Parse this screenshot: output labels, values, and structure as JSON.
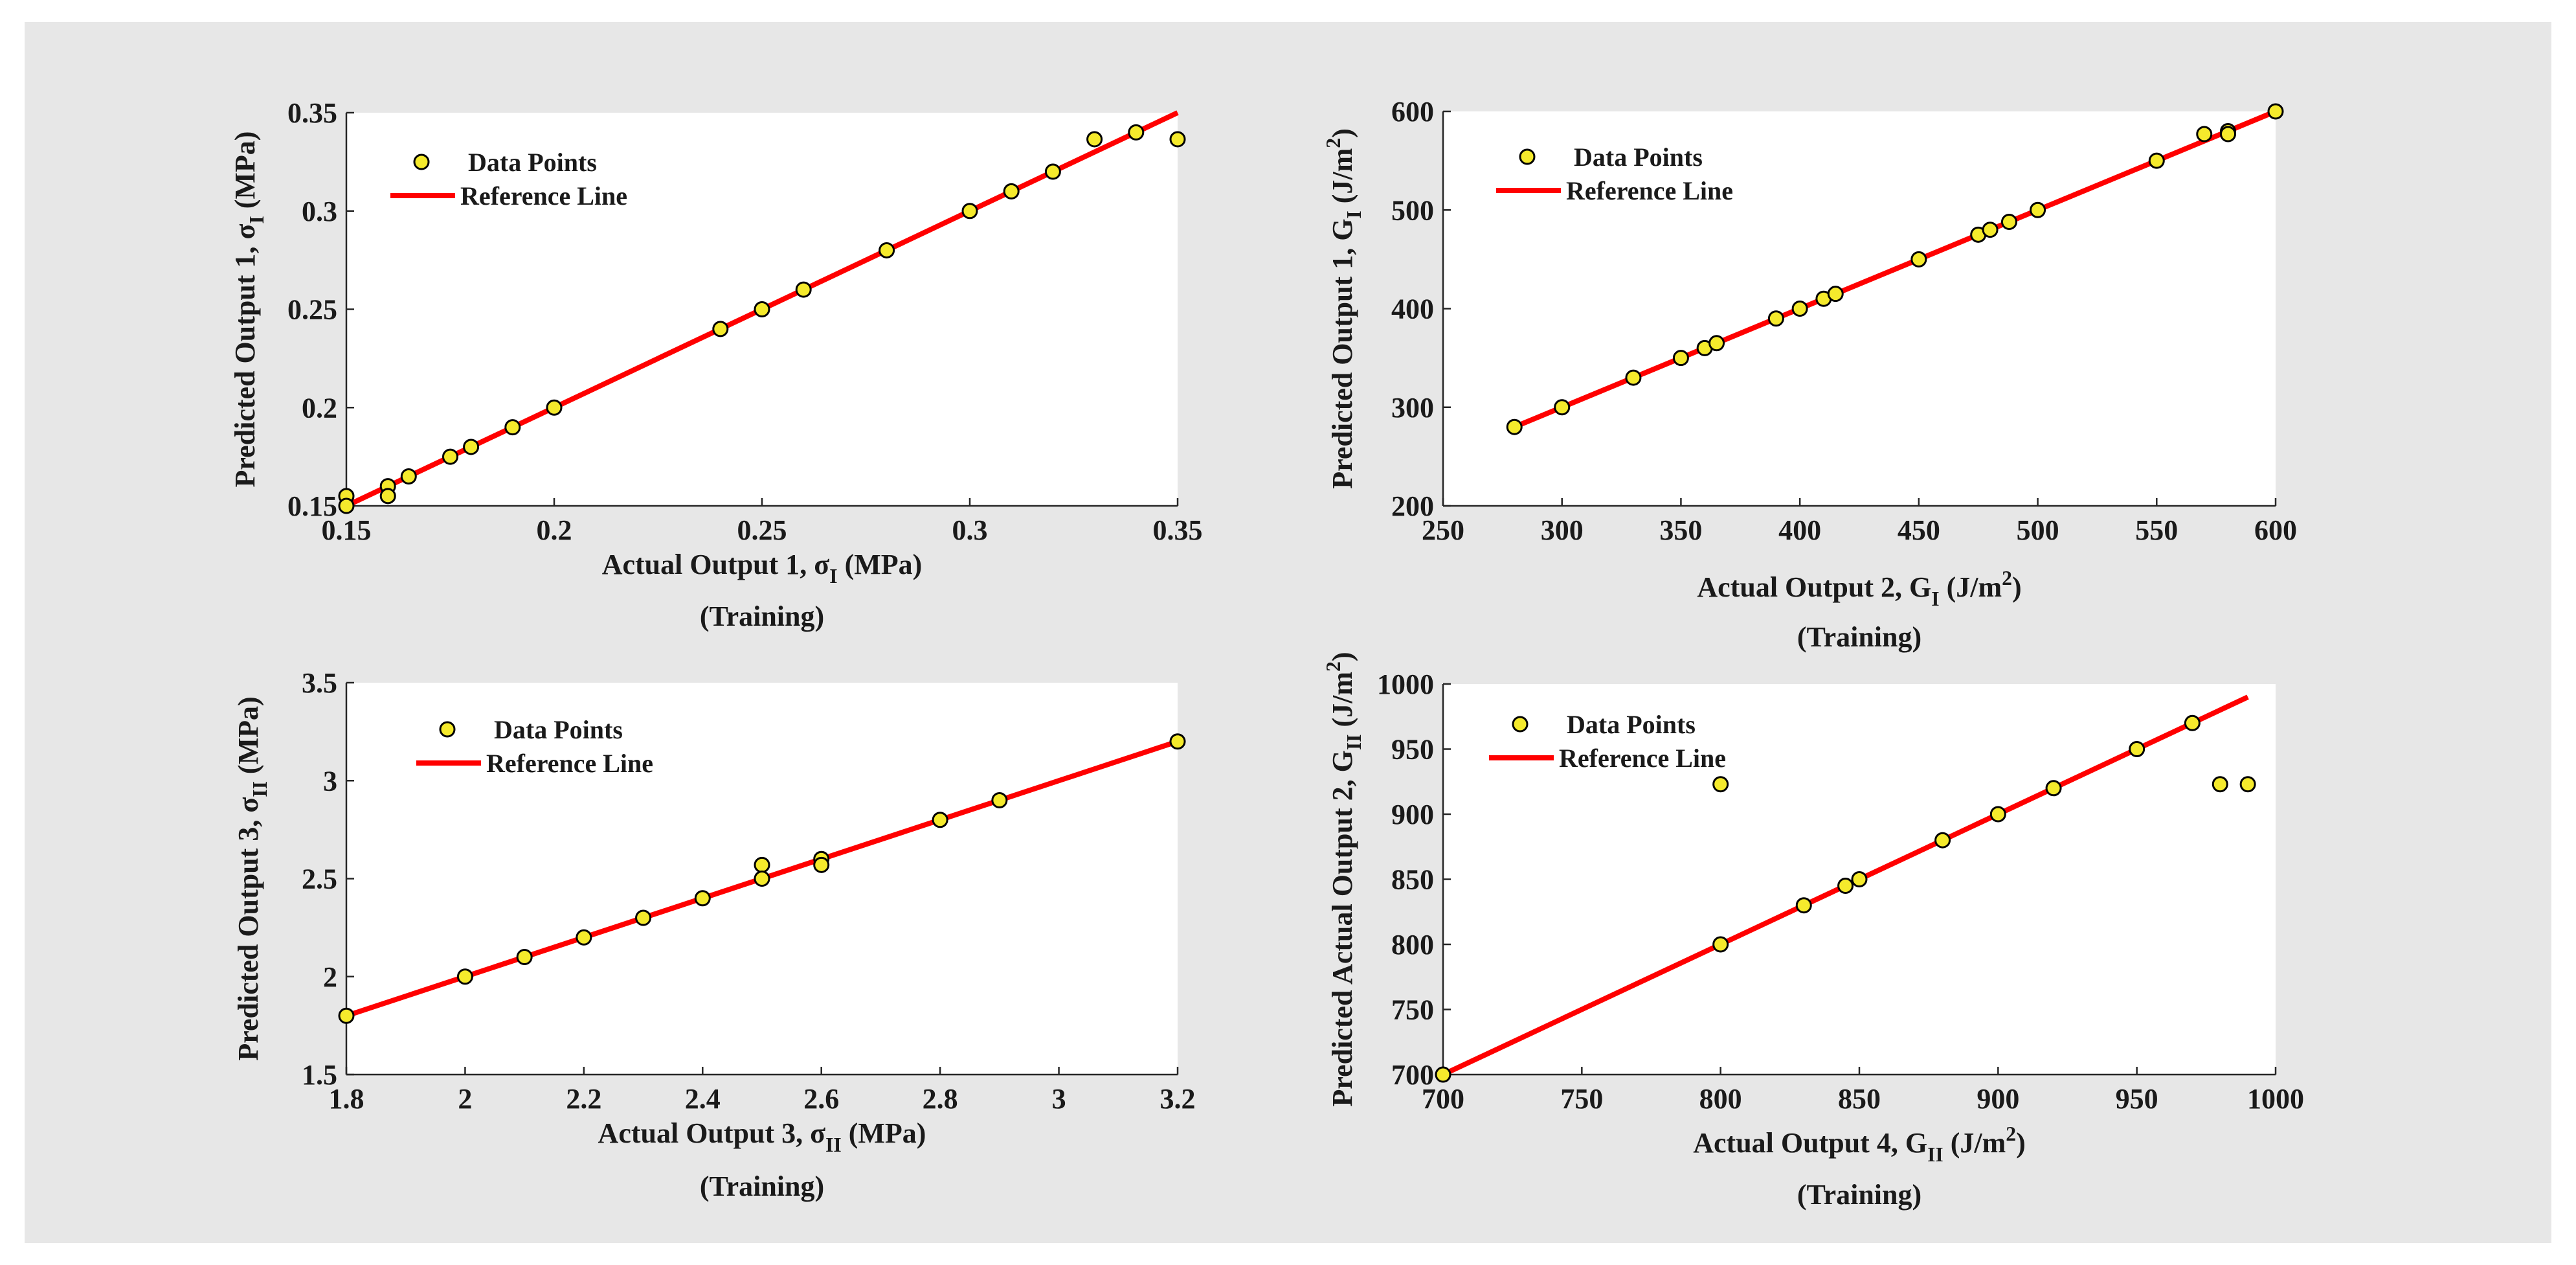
{
  "figure": {
    "background": "#e7e7e7"
  },
  "chart_data": [
    {
      "type": "scatter",
      "caption": "(Training)",
      "xlabel": {
        "base": "Actual Output 1, σ",
        "sub": "I",
        "unit": " (MPa)",
        "sup": ""
      },
      "ylabel": {
        "base": "Predicted Output 1, σ",
        "sub": "I",
        "unit": " (MPa)",
        "sup": ""
      },
      "xlim": [
        0.15,
        0.35
      ],
      "ylim": [
        0.15,
        0.35
      ],
      "xticks": [
        0.15,
        0.2,
        0.25,
        0.3,
        0.35
      ],
      "xtick_labels": [
        "0.15",
        "0.2",
        "0.25",
        "0.3",
        "0.35"
      ],
      "yticks": [
        0.15,
        0.2,
        0.25,
        0.3,
        0.35
      ],
      "ytick_labels": [
        "0.15",
        "0.2",
        "0.25",
        "0.3",
        "0.35"
      ],
      "grid": false,
      "legend": {
        "placement": "top-left",
        "entries": [
          "Data Points",
          "Reference Line"
        ]
      },
      "series": [
        {
          "name": "Data Points",
          "kind": "scatter",
          "color": "#f5ea2c",
          "edge": "#000000",
          "x": [
            0.15,
            0.15,
            0.16,
            0.16,
            0.165,
            0.175,
            0.18,
            0.19,
            0.2,
            0.24,
            0.25,
            0.26,
            0.28,
            0.3,
            0.31,
            0.32,
            0.33,
            0.34,
            0.35
          ],
          "y": [
            0.155,
            0.15,
            0.16,
            0.155,
            0.165,
            0.175,
            0.18,
            0.19,
            0.2,
            0.24,
            0.25,
            0.26,
            0.28,
            0.3,
            0.31,
            0.32,
            0.3365,
            0.34,
            0.3365
          ]
        },
        {
          "name": "Reference Line",
          "kind": "line",
          "color": "#ff0000",
          "x": [
            0.15,
            0.35
          ],
          "y": [
            0.15,
            0.35
          ]
        }
      ]
    },
    {
      "type": "scatter",
      "caption": "(Training)",
      "xlabel": {
        "base": "Actual Output 2, G",
        "sub": "I",
        "unit": " (J/m",
        "sup": "2",
        "tail": ")"
      },
      "ylabel": {
        "base": "Predicted Output 1, G",
        "sub": "I",
        "unit": " (J/m",
        "sup": "2",
        "tail": ")"
      },
      "xlim": [
        250,
        600
      ],
      "ylim": [
        200,
        600
      ],
      "xticks": [
        250,
        300,
        350,
        400,
        450,
        500,
        550,
        600
      ],
      "xtick_labels": [
        "250",
        "300",
        "350",
        "400",
        "450",
        "500",
        "550",
        "600"
      ],
      "yticks": [
        200,
        300,
        400,
        500,
        600
      ],
      "ytick_labels": [
        "200",
        "300",
        "400",
        "500",
        "600"
      ],
      "grid": false,
      "legend": {
        "placement": "top-left",
        "entries": [
          "Data Points",
          "Reference Line"
        ]
      },
      "series": [
        {
          "name": "Data Points",
          "kind": "scatter",
          "color": "#f5ea2c",
          "edge": "#000000",
          "x": [
            280,
            300,
            330,
            350,
            360,
            365,
            390,
            400,
            410,
            415,
            450,
            475,
            480,
            488,
            500,
            550,
            570,
            580,
            580,
            600
          ],
          "y": [
            280,
            300,
            330,
            350,
            360,
            365,
            390,
            400,
            410,
            415,
            450,
            475,
            480,
            488,
            500,
            550,
            577,
            580,
            577,
            600
          ]
        },
        {
          "name": "Reference Line",
          "kind": "line",
          "color": "#ff0000",
          "x": [
            280,
            600
          ],
          "y": [
            280,
            600
          ]
        }
      ]
    },
    {
      "type": "scatter",
      "caption": "(Training)",
      "xlabel": {
        "base": "Actual Output 3, σ",
        "sub": "II",
        "unit": " (MPa)",
        "sup": ""
      },
      "ylabel": {
        "base": "Predicted Output 3, σ",
        "sub": "II",
        "unit": " (MPa)",
        "sup": ""
      },
      "xlim": [
        1.8,
        3.2
      ],
      "ylim": [
        1.5,
        3.5
      ],
      "xticks": [
        1.8,
        2,
        2.2,
        2.4,
        2.6,
        2.8,
        3,
        3.2
      ],
      "xtick_labels": [
        "1.8",
        "2",
        "2.2",
        "2.4",
        "2.6",
        "2.8",
        "3",
        "3.2"
      ],
      "yticks": [
        1.5,
        2,
        2.5,
        3,
        3.5
      ],
      "ytick_labels": [
        "1.5",
        "2",
        "2.5",
        "3",
        "3.5"
      ],
      "grid": false,
      "legend": {
        "placement": "top-left",
        "entries": [
          "Data Points",
          "Reference Line"
        ]
      },
      "series": [
        {
          "name": "Data Points",
          "kind": "scatter",
          "color": "#f5ea2c",
          "edge": "#000000",
          "x": [
            1.8,
            2.0,
            2.1,
            2.2,
            2.3,
            2.4,
            2.5,
            2.5,
            2.6,
            2.6,
            2.8,
            2.9,
            3.2
          ],
          "y": [
            1.8,
            2.0,
            2.1,
            2.2,
            2.3,
            2.4,
            2.57,
            2.5,
            2.6,
            2.57,
            2.8,
            2.9,
            3.2
          ]
        },
        {
          "name": "Reference Line",
          "kind": "line",
          "color": "#ff0000",
          "x": [
            1.8,
            3.2
          ],
          "y": [
            1.8,
            3.2
          ]
        }
      ]
    },
    {
      "type": "scatter",
      "caption": "(Training)",
      "xlabel": {
        "base": "Actual Output 4, G",
        "sub": "II",
        "unit": " (J/m",
        "sup": "2",
        "tail": ")"
      },
      "ylabel": {
        "base": "Predicted Actual Output 2, G",
        "sub": "II",
        "unit": " (J/m",
        "sup": "2",
        "tail": ")"
      },
      "xlim": [
        700,
        1000
      ],
      "ylim": [
        700,
        1000
      ],
      "xticks": [
        700,
        750,
        800,
        850,
        900,
        950,
        1000
      ],
      "xtick_labels": [
        "700",
        "750",
        "800",
        "850",
        "900",
        "950",
        "1000"
      ],
      "yticks": [
        700,
        750,
        800,
        850,
        900,
        950,
        1000
      ],
      "ytick_labels": [
        "700",
        "750",
        "800",
        "850",
        "900",
        "950",
        "1000"
      ],
      "grid": false,
      "legend": {
        "placement": "top-left",
        "entries": [
          "Data Points",
          "Reference Line"
        ]
      },
      "series": [
        {
          "name": "Data Points",
          "kind": "scatter",
          "color": "#f5ea2c",
          "edge": "#000000",
          "x": [
            700,
            800,
            800,
            830,
            845,
            850,
            880,
            900,
            920,
            950,
            970,
            980,
            990
          ],
          "y": [
            700,
            923,
            800,
            830,
            845,
            850,
            880,
            900,
            920,
            950,
            970,
            923,
            923
          ]
        },
        {
          "name": "Reference Line",
          "kind": "line",
          "color": "#ff0000",
          "x": [
            700,
            990
          ],
          "y": [
            700,
            990
          ]
        }
      ]
    }
  ]
}
